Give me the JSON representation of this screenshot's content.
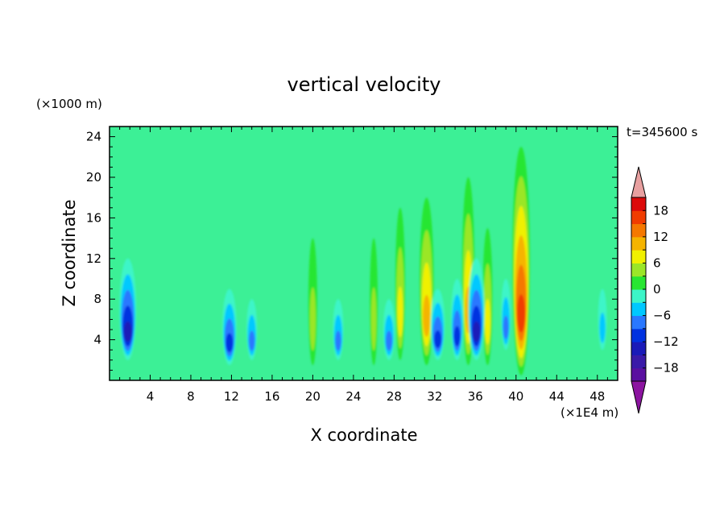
{
  "chart_data": {
    "type": "heatmap",
    "title": "vertical velocity",
    "xlabel": "X coordinate",
    "ylabel": "Z coordinate",
    "x_unit": "(×1E4 m)",
    "y_unit": "(×1000 m)",
    "time_label": "t=345600 s",
    "xlim": [
      0,
      50
    ],
    "ylim": [
      0,
      25
    ],
    "x_ticks": [
      4,
      8,
      12,
      16,
      20,
      24,
      28,
      32,
      36,
      40,
      44,
      48
    ],
    "y_ticks": [
      4,
      8,
      12,
      16,
      20,
      24
    ],
    "colorbar": {
      "levels": [
        -21,
        -18,
        -15,
        -12,
        -9,
        -6,
        -3,
        0,
        3,
        6,
        9,
        12,
        15,
        18,
        21
      ],
      "tick_values": [
        -18,
        -12,
        -6,
        0,
        6,
        12,
        18
      ],
      "tick_labels": [
        "−18",
        "−12",
        "−6",
        "0",
        "6",
        "12",
        "18"
      ],
      "colors": [
        "#5a10a0",
        "#3a1aa8",
        "#1a1ab8",
        "#0032e0",
        "#2a78ff",
        "#00c8ff",
        "#3cf5c8",
        "#28e632",
        "#9be628",
        "#f0f000",
        "#f5b400",
        "#f57800",
        "#f03c00",
        "#dc0a0a",
        "#e8a0a0"
      ],
      "under_color": "#8c14a0",
      "over_color": "#e8a0a0"
    },
    "background_color": "#3cf096",
    "features": [
      {
        "x": 40.5,
        "z_bottom": 0.5,
        "z_top": 23,
        "peak": 16,
        "kind": "updraft"
      },
      {
        "x": 35.3,
        "z_bottom": 1.5,
        "z_top": 20,
        "peak": 10,
        "kind": "updraft"
      },
      {
        "x": 31.2,
        "z_bottom": 1.5,
        "z_top": 18,
        "peak": 12,
        "kind": "updraft"
      },
      {
        "x": 28.6,
        "z_bottom": 2,
        "z_top": 17,
        "peak": 7,
        "kind": "updraft"
      },
      {
        "x": 20.0,
        "z_bottom": 1.5,
        "z_top": 14,
        "peak": 6,
        "kind": "updraft"
      },
      {
        "x": 26.0,
        "z_bottom": 1.5,
        "z_top": 14,
        "peak": 5,
        "kind": "updraft"
      },
      {
        "x": 37.2,
        "z_bottom": 1.5,
        "z_top": 15,
        "peak": 7,
        "kind": "updraft"
      },
      {
        "x": 1.8,
        "z_bottom": 2,
        "z_top": 12,
        "peak": -15,
        "kind": "downdraft"
      },
      {
        "x": 36.1,
        "z_bottom": 2,
        "z_top": 12,
        "peak": -14,
        "kind": "downdraft"
      },
      {
        "x": 32.3,
        "z_bottom": 2,
        "z_top": 9,
        "peak": -12,
        "kind": "downdraft"
      },
      {
        "x": 34.2,
        "z_bottom": 2,
        "z_top": 10,
        "peak": -10,
        "kind": "downdraft"
      },
      {
        "x": 11.8,
        "z_bottom": 1.5,
        "z_top": 9,
        "peak": -12,
        "kind": "downdraft"
      },
      {
        "x": 27.5,
        "z_bottom": 2,
        "z_top": 8,
        "peak": -9,
        "kind": "downdraft"
      },
      {
        "x": 22.5,
        "z_bottom": 2,
        "z_top": 8,
        "peak": -8,
        "kind": "downdraft"
      },
      {
        "x": 14.0,
        "z_bottom": 2,
        "z_top": 8,
        "peak": -8,
        "kind": "downdraft"
      },
      {
        "x": 39.0,
        "z_bottom": 3,
        "z_top": 10,
        "peak": -7,
        "kind": "downdraft"
      },
      {
        "x": 48.5,
        "z_bottom": 3,
        "z_top": 9,
        "peak": -6,
        "kind": "downdraft"
      }
    ]
  }
}
